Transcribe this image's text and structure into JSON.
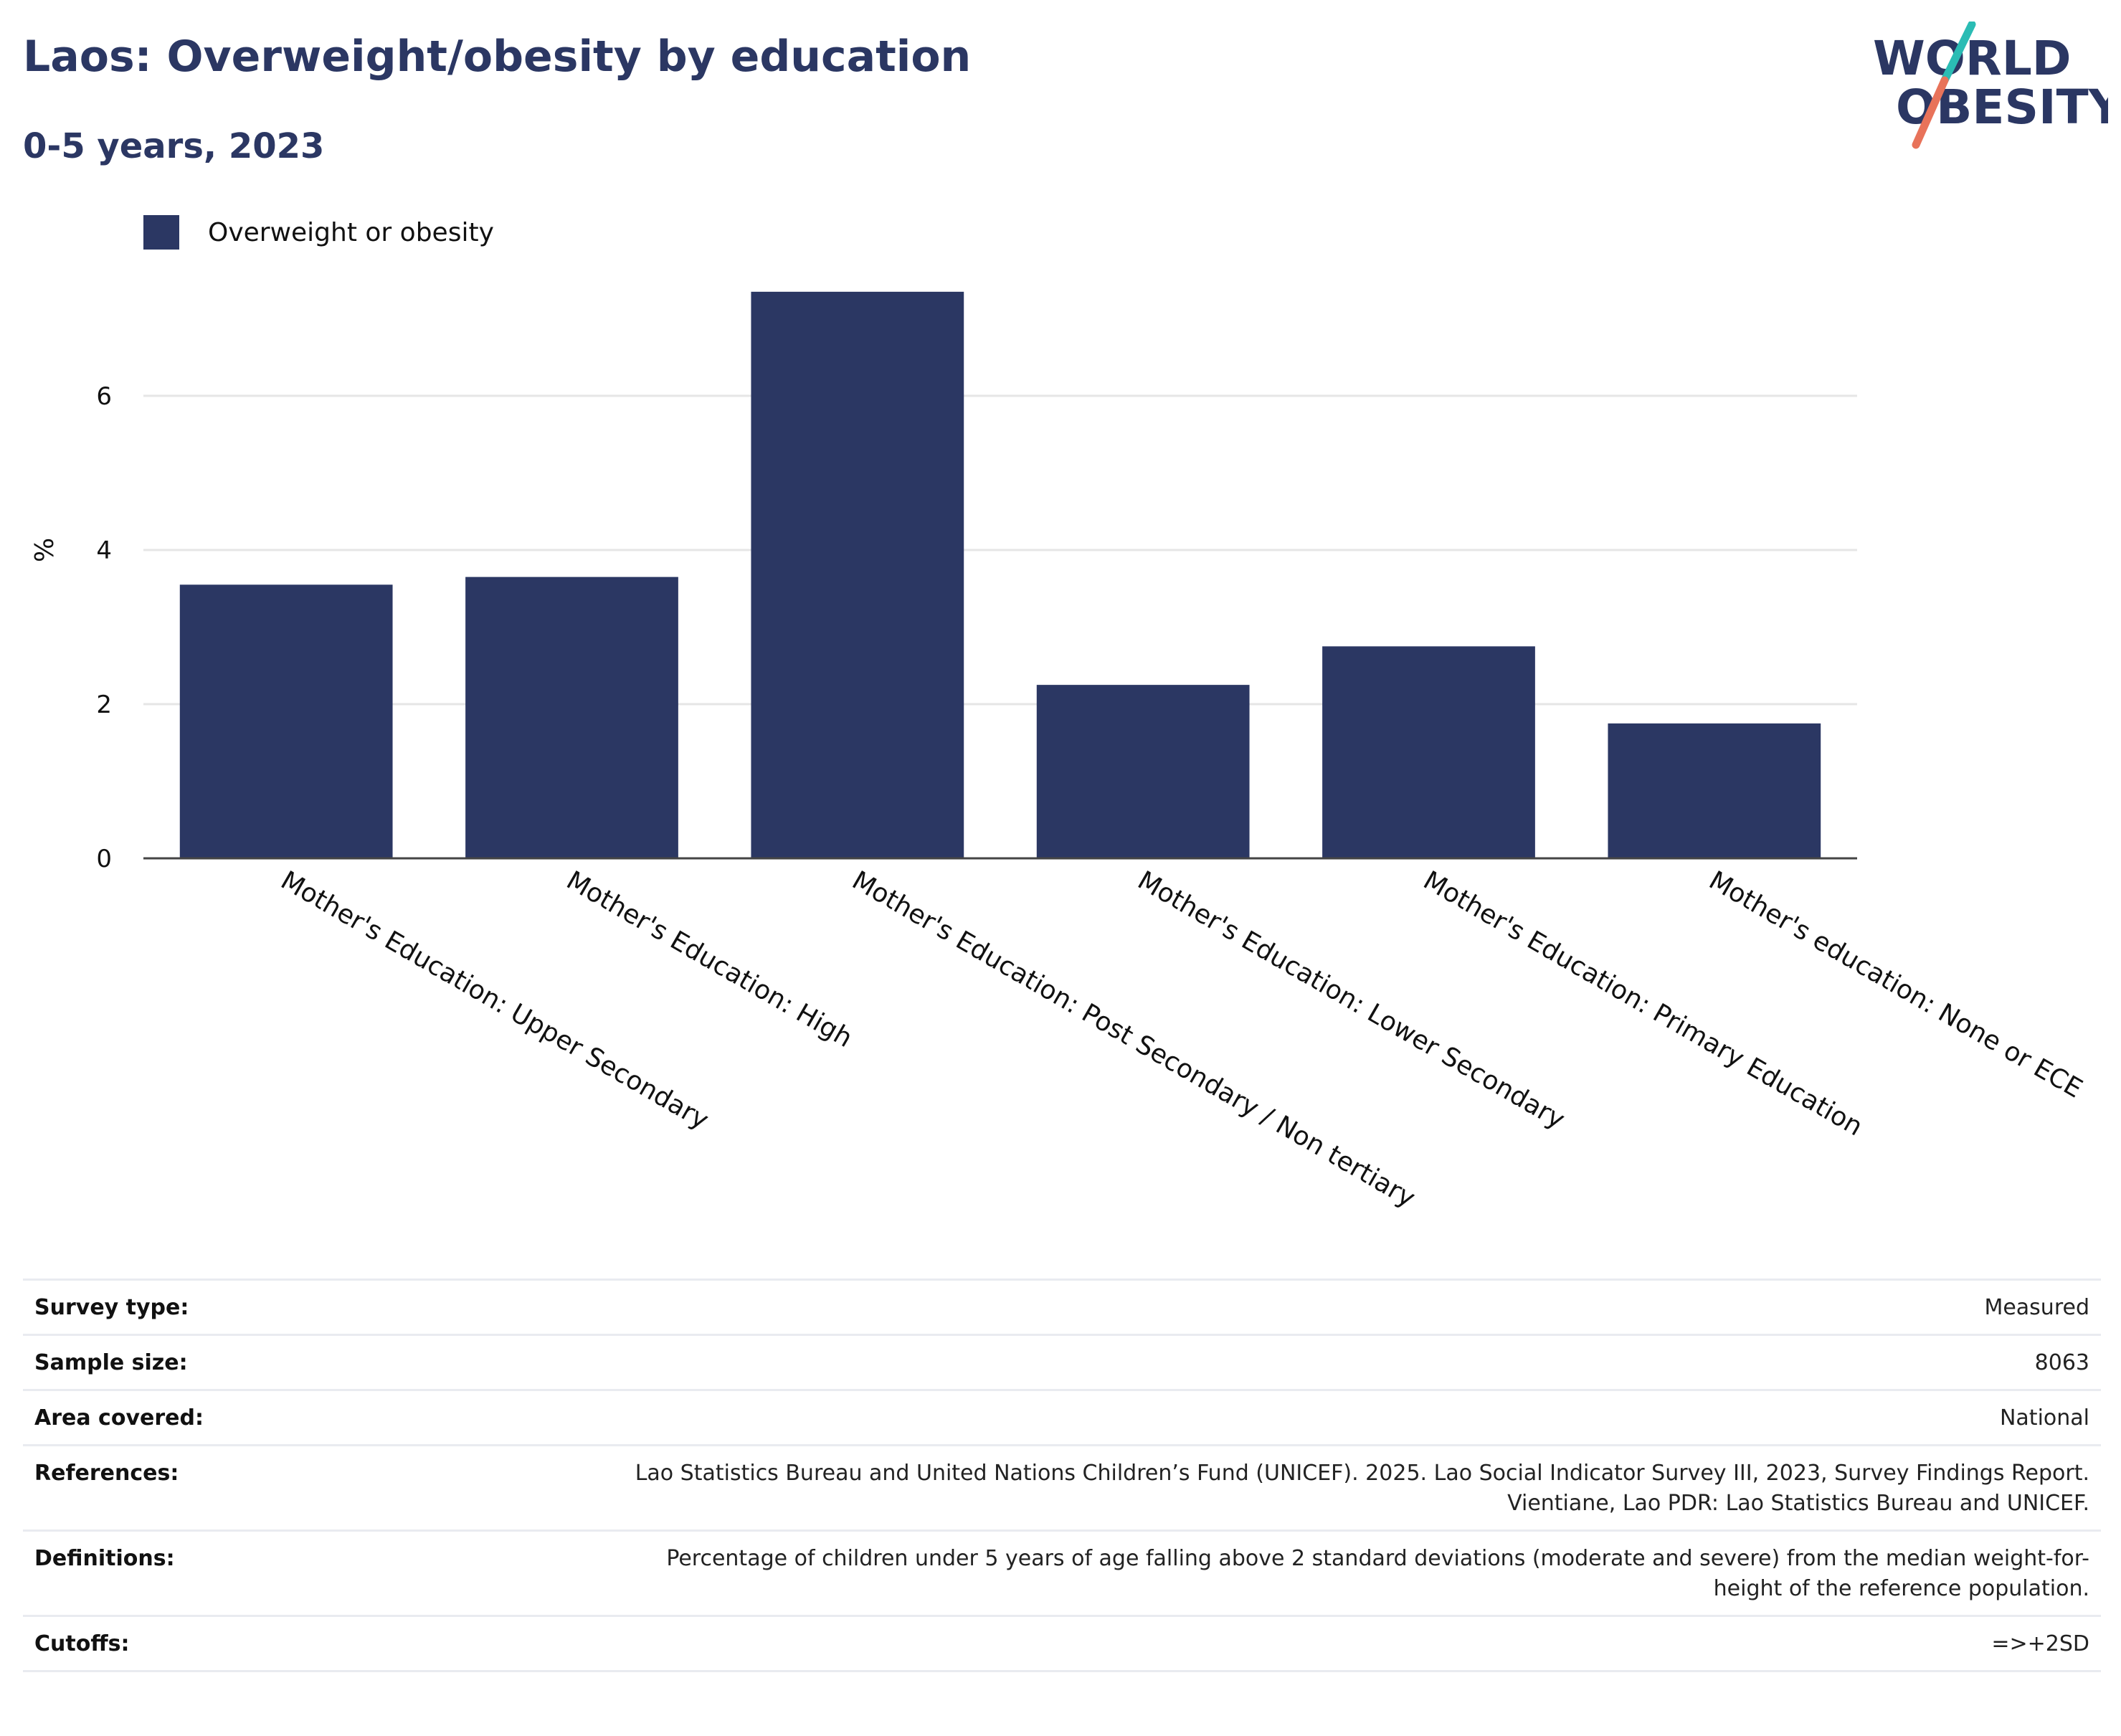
{
  "header": {
    "title": "Laos: Overweight/obesity by education",
    "subtitle": "0-5 years, 2023"
  },
  "logo": {
    "line1": "WORLD",
    "line2": "OBESITY",
    "colors": {
      "text": "#2b3763",
      "slash_top": "#2bbcb4",
      "slash_bottom": "#e8735a"
    }
  },
  "legend": {
    "label": "Overweight or obesity",
    "color": "#2b3763"
  },
  "chart_data": {
    "type": "bar",
    "title": "Laos: Overweight/obesity by education",
    "subtitle": "0-5 years, 2023",
    "xlabel": "",
    "ylabel": "%",
    "ylim": [
      0,
      7.6
    ],
    "yticks": [
      0,
      2,
      4,
      6
    ],
    "grid": true,
    "legend_position": "top-left",
    "color": "#2b3763",
    "categories": [
      "Mother's Education: Upper Secondary",
      "Mother's Education: High",
      "Mother's Education: Post Secondary / Non tertiary",
      "Mother's Education: Lower Secondary",
      "Mother's Education: Primary Education",
      "Mother's education: None or ECE"
    ],
    "series": [
      {
        "name": "Overweight or obesity",
        "values": [
          3.55,
          3.65,
          7.35,
          2.25,
          2.75,
          1.75
        ]
      }
    ]
  },
  "info": [
    {
      "key": "Survey type:",
      "value": "Measured"
    },
    {
      "key": "Sample size:",
      "value": "8063"
    },
    {
      "key": "Area covered:",
      "value": "National"
    },
    {
      "key": "References:",
      "value_lines": [
        "Lao Statistics Bureau and United Nations Children’s Fund (UNICEF). 2025. Lao Social Indicator Survey III, 2023, Survey Findings Report.",
        "Vientiane, Lao PDR: Lao Statistics Bureau and UNICEF."
      ]
    },
    {
      "key": "Definitions:",
      "value_lines": [
        "Percentage of children under 5 years of age falling above 2 standard deviations (moderate and severe) from the median weight-for-",
        "height of the reference population."
      ]
    },
    {
      "key": "Cutoffs:",
      "value": "=>+2SD"
    }
  ]
}
